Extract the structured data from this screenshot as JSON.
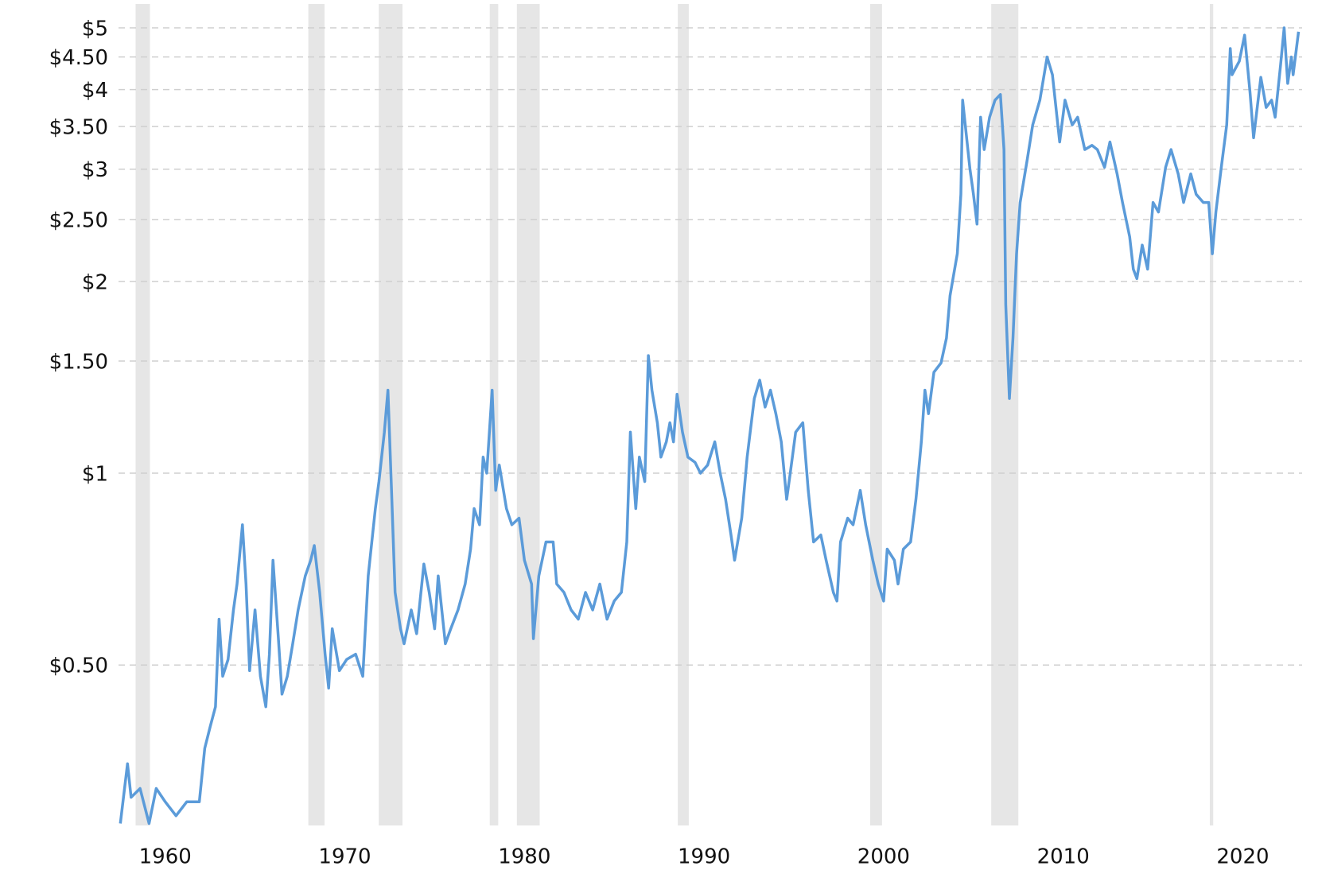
{
  "chart_data": {
    "type": "line",
    "log_scale": true,
    "grid": true,
    "xlim": [
      1957.4,
      2023.3
    ],
    "xticks": [
      1960,
      1970,
      1980,
      1990,
      2000,
      2010,
      2020
    ],
    "ylim": [
      0.28,
      5.45
    ],
    "yticks": [
      {
        "value": 0.5,
        "label": "$0.50"
      },
      {
        "value": 1,
        "label": "$1"
      },
      {
        "value": 1.5,
        "label": "$1.50"
      },
      {
        "value": 2,
        "label": "$2"
      },
      {
        "value": 2.5,
        "label": "$2.50"
      },
      {
        "value": 3,
        "label": "$3"
      },
      {
        "value": 3.5,
        "label": "$3.50"
      },
      {
        "value": 4,
        "label": "$4"
      },
      {
        "value": 4.5,
        "label": "$4.50"
      },
      {
        "value": 5,
        "label": "$5"
      }
    ],
    "shaded_periods": [
      [
        1958.35,
        1959.15
      ],
      [
        1967.97,
        1968.87
      ],
      [
        1971.89,
        1973.21
      ],
      [
        1978.07,
        1978.54
      ],
      [
        1979.58,
        1980.85
      ],
      [
        1988.54,
        1989.15
      ],
      [
        1999.25,
        1999.91
      ],
      [
        2005.99,
        2007.5
      ],
      [
        2018.16,
        2018.35
      ]
    ],
    "shade_color": "#e6e6e6",
    "series": [
      {
        "color": "#5b9bd9",
        "x": [
          1957.5,
          1957.9,
          1958.1,
          1958.6,
          1959.1,
          1959.5,
          1960.0,
          1960.6,
          1961.2,
          1961.9,
          1962.2,
          1962.5,
          1962.8,
          1963.0,
          1963.2,
          1963.5,
          1963.8,
          1964.0,
          1964.3,
          1964.5,
          1964.7,
          1965.0,
          1965.3,
          1965.6,
          1965.8,
          1966.0,
          1966.3,
          1966.5,
          1966.8,
          1967.1,
          1967.4,
          1967.8,
          1968.1,
          1968.3,
          1968.6,
          1968.9,
          1969.1,
          1969.3,
          1969.7,
          1970.1,
          1970.6,
          1971.0,
          1971.3,
          1971.7,
          1971.9,
          1972.2,
          1972.4,
          1972.6,
          1972.8,
          1973.1,
          1973.3,
          1973.7,
          1974.0,
          1974.4,
          1974.7,
          1975.0,
          1975.2,
          1975.6,
          1975.9,
          1976.3,
          1976.7,
          1977.0,
          1977.2,
          1977.5,
          1977.7,
          1977.9,
          1978.2,
          1978.4,
          1978.6,
          1979.0,
          1979.3,
          1979.7,
          1980.0,
          1980.4,
          1980.5,
          1980.8,
          1981.2,
          1981.6,
          1981.8,
          1982.2,
          1982.6,
          1983.0,
          1983.4,
          1983.8,
          1984.2,
          1984.6,
          1985.0,
          1985.4,
          1985.7,
          1985.9,
          1986.2,
          1986.4,
          1986.7,
          1986.9,
          1987.1,
          1987.4,
          1987.6,
          1987.9,
          1988.1,
          1988.3,
          1988.5,
          1988.8,
          1989.1,
          1989.5,
          1989.8,
          1990.2,
          1990.6,
          1990.9,
          1991.2,
          1991.5,
          1991.7,
          1992.1,
          1992.4,
          1992.8,
          1993.1,
          1993.4,
          1993.7,
          1994.0,
          1994.3,
          1994.6,
          1994.8,
          1995.1,
          1995.5,
          1995.8,
          1996.1,
          1996.5,
          1996.8,
          1997.2,
          1997.4,
          1997.6,
          1998.0,
          1998.3,
          1998.7,
          1999.0,
          1999.4,
          1999.7,
          2000.0,
          2000.2,
          2000.6,
          2000.8,
          2001.1,
          2001.5,
          2001.8,
          2002.1,
          2002.3,
          2002.5,
          2002.8,
          2003.2,
          2003.5,
          2003.7,
          2004.1,
          2004.3,
          2004.4,
          2004.6,
          2004.8,
          2005.0,
          2005.2,
          2005.4,
          2005.6,
          2005.9,
          2006.2,
          2006.5,
          2006.7,
          2006.8,
          2007.0,
          2007.2,
          2007.4,
          2007.6,
          2008.0,
          2008.3,
          2008.7,
          2009.1,
          2009.4,
          2009.8,
          2010.1,
          2010.5,
          2010.8,
          2011.2,
          2011.6,
          2011.9,
          2012.3,
          2012.6,
          2013.0,
          2013.3,
          2013.7,
          2013.9,
          2014.1,
          2014.4,
          2014.7,
          2015.0,
          2015.3,
          2015.7,
          2016.0,
          2016.4,
          2016.7,
          2017.1,
          2017.4,
          2017.8,
          2018.1,
          2018.3,
          2018.5,
          2018.8,
          2019.1,
          2019.3,
          2019.4,
          2019.8,
          2020.1,
          2020.4,
          2020.6,
          2021.0,
          2021.3,
          2021.6,
          2021.8,
          2022.1,
          2022.3,
          2022.5,
          2022.7,
          2022.8,
          2023.1
        ],
        "values": [
          0.282,
          0.35,
          0.31,
          0.32,
          0.282,
          0.32,
          0.305,
          0.29,
          0.305,
          0.305,
          0.37,
          0.4,
          0.43,
          0.59,
          0.48,
          0.51,
          0.61,
          0.67,
          0.83,
          0.67,
          0.49,
          0.61,
          0.48,
          0.43,
          0.52,
          0.73,
          0.55,
          0.45,
          0.48,
          0.54,
          0.61,
          0.69,
          0.73,
          0.77,
          0.65,
          0.52,
          0.46,
          0.57,
          0.49,
          0.51,
          0.52,
          0.48,
          0.69,
          0.88,
          0.97,
          1.16,
          1.35,
          0.94,
          0.65,
          0.57,
          0.54,
          0.61,
          0.56,
          0.72,
          0.65,
          0.57,
          0.69,
          0.54,
          0.57,
          0.61,
          0.67,
          0.76,
          0.88,
          0.83,
          1.06,
          1.0,
          1.35,
          0.94,
          1.03,
          0.88,
          0.83,
          0.85,
          0.73,
          0.67,
          0.55,
          0.69,
          0.78,
          0.78,
          0.67,
          0.65,
          0.61,
          0.59,
          0.65,
          0.61,
          0.67,
          0.59,
          0.63,
          0.65,
          0.78,
          1.16,
          0.88,
          1.06,
          0.97,
          1.53,
          1.35,
          1.2,
          1.06,
          1.12,
          1.2,
          1.12,
          1.33,
          1.16,
          1.06,
          1.04,
          1.0,
          1.03,
          1.12,
          1.0,
          0.91,
          0.8,
          0.73,
          0.85,
          1.06,
          1.31,
          1.4,
          1.27,
          1.35,
          1.24,
          1.12,
          0.91,
          1.0,
          1.16,
          1.2,
          0.94,
          0.78,
          0.8,
          0.73,
          0.65,
          0.63,
          0.78,
          0.85,
          0.83,
          0.94,
          0.83,
          0.73,
          0.67,
          0.63,
          0.76,
          0.73,
          0.67,
          0.76,
          0.78,
          0.91,
          1.12,
          1.35,
          1.24,
          1.44,
          1.49,
          1.63,
          1.9,
          2.21,
          2.74,
          3.85,
          3.4,
          3.01,
          2.74,
          2.46,
          3.62,
          3.22,
          3.62,
          3.85,
          3.93,
          3.22,
          1.84,
          1.31,
          1.63,
          2.21,
          2.66,
          3.11,
          3.52,
          3.85,
          4.5,
          4.22,
          3.31,
          3.85,
          3.52,
          3.62,
          3.22,
          3.27,
          3.22,
          3.02,
          3.31,
          2.95,
          2.66,
          2.35,
          2.09,
          2.02,
          2.28,
          2.09,
          2.66,
          2.57,
          3.02,
          3.22,
          2.95,
          2.66,
          2.95,
          2.74,
          2.66,
          2.66,
          2.21,
          2.57,
          3.02,
          3.52,
          4.64,
          4.22,
          4.43,
          4.87,
          3.96,
          3.36,
          4.18,
          3.75,
          3.85,
          3.62,
          4.37,
          5.0,
          4.09,
          4.5,
          4.22,
          4.93
        ]
      }
    ]
  }
}
